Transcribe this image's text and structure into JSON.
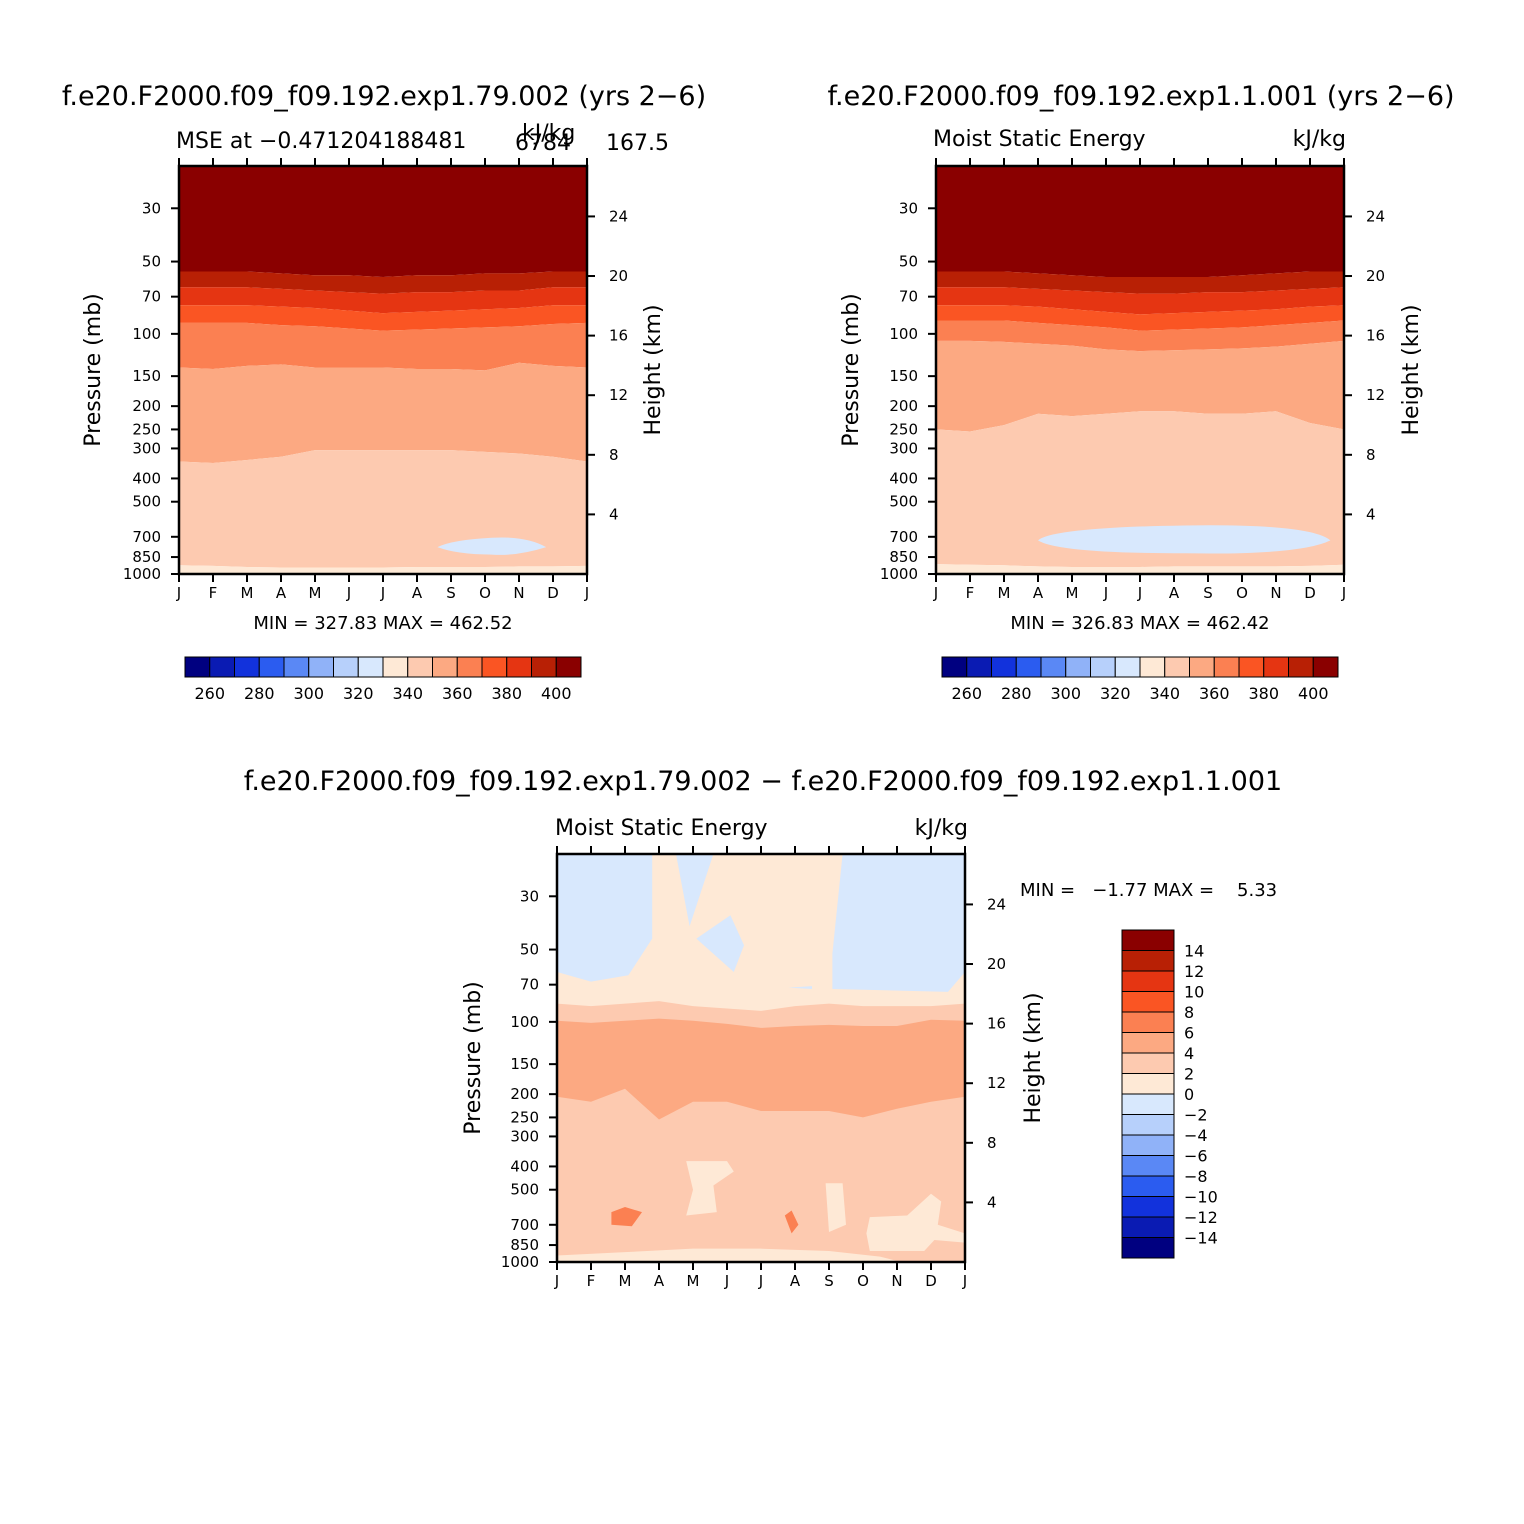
{
  "chart_data": [
    {
      "type": "heatmap",
      "panel": "top-left",
      "title": "f.e20.F2000.f09_f09.192.exp1.79.002 (yrs 2−6)",
      "subtitle_left": "MSE at −0.471204188481",
      "subtitle_right": "kJ/kg",
      "subtitle_extra": "6784",
      "subtitle_extra2": "167.5",
      "xlabel": "",
      "ylabel": "Pressure (mb)",
      "ylabel_right": "Height (km)",
      "x_categories": [
        "J",
        "F",
        "M",
        "A",
        "M",
        "J",
        "J",
        "A",
        "S",
        "O",
        "N",
        "D",
        "J"
      ],
      "y_ticks": [
        30,
        50,
        70,
        100,
        150,
        200,
        250,
        300,
        400,
        500,
        700,
        850,
        1000
      ],
      "y_ticks_right": [
        24,
        20,
        16,
        12,
        8,
        4
      ],
      "y_scale": "log",
      "ylim": [
        1000,
        20
      ],
      "min_max_text": "MIN = 327.83 MAX = 462.52",
      "contour_levels": [
        260,
        270,
        280,
        290,
        300,
        310,
        320,
        330,
        340,
        350,
        360,
        370,
        380,
        390,
        400
      ],
      "bands_from_top_by_month": [
        {
          "level": ">400",
          "boundary_mb": [
            55,
            55,
            55,
            56,
            57,
            57,
            58,
            57,
            57,
            56,
            56,
            55,
            55
          ]
        },
        {
          "level": "390-400",
          "boundary_mb": [
            64,
            64,
            64,
            65,
            66,
            67,
            68,
            67,
            67,
            66,
            66,
            64,
            64
          ]
        },
        {
          "level": "380-390",
          "boundary_mb": [
            76,
            76,
            76,
            77,
            78,
            80,
            82,
            81,
            80,
            79,
            78,
            76,
            76
          ]
        },
        {
          "level": "370-380",
          "boundary_mb": [
            90,
            90,
            90,
            92,
            93,
            95,
            97,
            96,
            95,
            94,
            93,
            91,
            90
          ]
        },
        {
          "level": "360-370",
          "boundary_mb": [
            138,
            140,
            136,
            134,
            138,
            138,
            138,
            140,
            140,
            142,
            132,
            136,
            138
          ]
        },
        {
          "level": "350-360",
          "boundary_mb": [
            340,
            345,
            335,
            325,
            305,
            305,
            305,
            305,
            305,
            310,
            315,
            325,
            340
          ]
        },
        {
          "level": "340-350",
          "boundary_mb": [
            920,
            925,
            935,
            940,
            940,
            940,
            940,
            935,
            935,
            935,
            930,
            930,
            925
          ]
        },
        {
          "level": "330-340",
          "boundary_mb": [
            1000,
            1000,
            1000,
            1000,
            1000,
            1000,
            1000,
            1000,
            1000,
            1000,
            1000,
            1000,
            1000
          ]
        }
      ],
      "islands": [
        {
          "level": "320-330",
          "month_range": [
            7.6,
            10.8
          ],
          "pressure_range_mb": [
            720,
            830
          ]
        }
      ]
    },
    {
      "type": "heatmap",
      "panel": "top-right",
      "title": "f.e20.F2000.f09_f09.192.exp1.1.001 (yrs 2−6)",
      "subtitle_left": "Moist Static Energy",
      "subtitle_right": "kJ/kg",
      "xlabel": "",
      "ylabel": "Pressure (mb)",
      "ylabel_right": "Height (km)",
      "x_categories": [
        "J",
        "F",
        "M",
        "A",
        "M",
        "J",
        "J",
        "A",
        "S",
        "O",
        "N",
        "D",
        "J"
      ],
      "y_ticks": [
        30,
        50,
        70,
        100,
        150,
        200,
        250,
        300,
        400,
        500,
        700,
        850,
        1000
      ],
      "y_ticks_right": [
        24,
        20,
        16,
        12,
        8,
        4
      ],
      "y_scale": "log",
      "ylim": [
        1000,
        20
      ],
      "min_max_text": "MIN = 326.83 MAX = 462.42",
      "contour_levels": [
        260,
        270,
        280,
        290,
        300,
        310,
        320,
        330,
        340,
        350,
        360,
        370,
        380,
        390,
        400
      ],
      "bands_from_top_by_month": [
        {
          "level": ">400",
          "boundary_mb": [
            55,
            55,
            55,
            56,
            57,
            58,
            58,
            58,
            58,
            57,
            56,
            55,
            55
          ]
        },
        {
          "level": "390-400",
          "boundary_mb": [
            64,
            64,
            64,
            65,
            66,
            67,
            68,
            68,
            67,
            67,
            66,
            65,
            64
          ]
        },
        {
          "level": "380-390",
          "boundary_mb": [
            76,
            76,
            76,
            77,
            79,
            81,
            83,
            82,
            81,
            80,
            79,
            77,
            76
          ]
        },
        {
          "level": "370-380",
          "boundary_mb": [
            88,
            88,
            88,
            90,
            92,
            94,
            97,
            96,
            95,
            94,
            92,
            90,
            88
          ]
        },
        {
          "level": "360-370",
          "boundary_mb": [
            107,
            107,
            108,
            110,
            112,
            116,
            118,
            117,
            116,
            115,
            113,
            110,
            107
          ]
        },
        {
          "level": "350-360",
          "boundary_mb": [
            250,
            255,
            240,
            215,
            220,
            215,
            210,
            210,
            215,
            215,
            210,
            235,
            250
          ]
        },
        {
          "level": "340-350",
          "boundary_mb": [
            910,
            915,
            920,
            930,
            935,
            935,
            935,
            930,
            930,
            930,
            930,
            925,
            915
          ]
        },
        {
          "level": "330-340",
          "boundary_mb": [
            1000,
            1000,
            1000,
            1000,
            1000,
            1000,
            1000,
            1000,
            1000,
            1000,
            1000,
            1000,
            1000
          ]
        }
      ],
      "islands": [
        {
          "level": "320-330",
          "month_range": [
            3.0,
            11.6
          ],
          "pressure_range_mb": [
            640,
            820
          ]
        }
      ]
    },
    {
      "type": "heatmap",
      "panel": "bottom-difference",
      "title": "f.e20.F2000.f09_f09.192.exp1.79.002 − f.e20.F2000.f09_f09.192.exp1.1.001",
      "subtitle_left": "Moist Static Energy",
      "subtitle_right": "kJ/kg",
      "xlabel": "",
      "ylabel": "Pressure (mb)",
      "ylabel_right": "Height (km)",
      "x_categories": [
        "J",
        "F",
        "M",
        "A",
        "M",
        "J",
        "J",
        "A",
        "S",
        "O",
        "N",
        "D",
        "J"
      ],
      "y_ticks": [
        30,
        50,
        70,
        100,
        150,
        200,
        250,
        300,
        400,
        500,
        700,
        850,
        1000
      ],
      "y_ticks_right": [
        24,
        20,
        16,
        12,
        8,
        4
      ],
      "y_scale": "log",
      "ylim": [
        1000,
        20
      ],
      "min_max_text": "MIN =   −1.77 MAX =    5.33",
      "contour_levels": [
        -14,
        -12,
        -10,
        -8,
        -6,
        -4,
        -2,
        0,
        2,
        4,
        6,
        8,
        10,
        12,
        14
      ],
      "description_levels": {
        "upper_region": "-2 to 0 and 0 to 2",
        "middle_band": "4 to 6",
        "lower_region": "2 to 4"
      }
    }
  ],
  "colorbar_horizontal": {
    "labels": [
      "260",
      "280",
      "300",
      "320",
      "340",
      "360",
      "380",
      "400"
    ],
    "colors": [
      "#000080",
      "#0a1bb3",
      "#1232dc",
      "#2b5cf0",
      "#5a88f5",
      "#90b2f8",
      "#b7d0fb",
      "#d8e8fd",
      "#fee9d6",
      "#fdcab0",
      "#fca982",
      "#fb8052",
      "#fa5523",
      "#e53512",
      "#b82005",
      "#8a0000"
    ]
  },
  "colorbar_vertical": {
    "labels": [
      "14",
      "12",
      "10",
      "8",
      "6",
      "4",
      "2",
      "0",
      "−2",
      "−4",
      "−6",
      "−8",
      "−10",
      "−12",
      "−14"
    ],
    "colors": [
      "#8a0000",
      "#b82005",
      "#e53512",
      "#fa5523",
      "#fb8052",
      "#fca982",
      "#fdcab0",
      "#fee9d6",
      "#d8e8fd",
      "#b7d0fb",
      "#90b2f8",
      "#5a88f5",
      "#2b5cf0",
      "#1232dc",
      "#0a1bb3",
      "#000080"
    ]
  }
}
